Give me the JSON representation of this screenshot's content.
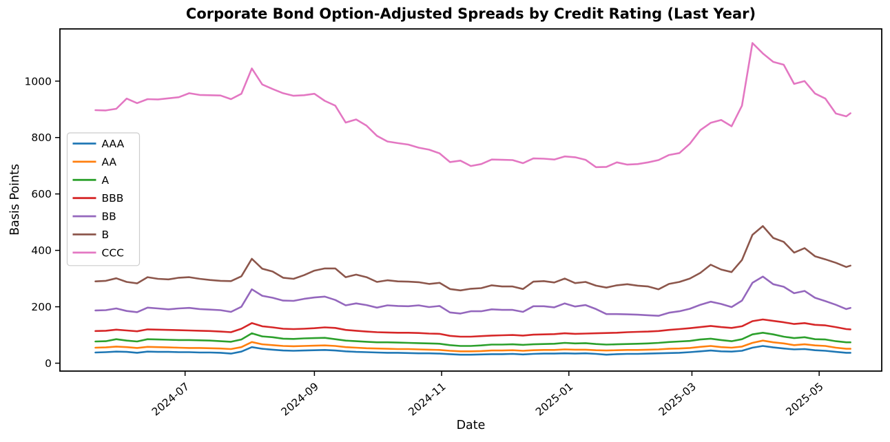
{
  "figure": {
    "background": "#ffffff",
    "frame_color": "#000000"
  },
  "chart_data": {
    "type": "line",
    "title": "Corporate Bond Option-Adjusted Spreads by Credit Rating (Last Year)",
    "xlabel": "Date",
    "ylabel": "Basis Points",
    "grid": false,
    "legend_position": "upper-left",
    "xlim": [
      "2024-05-02",
      "2025-05-31"
    ],
    "ylim": [
      -28,
      1185
    ],
    "yticks": [
      0,
      200,
      400,
      600,
      800,
      1000
    ],
    "xticks": [
      {
        "label": "2024-07",
        "date": "2024-07-01"
      },
      {
        "label": "2024-09",
        "date": "2024-09-01"
      },
      {
        "label": "2024-11",
        "date": "2024-11-01"
      },
      {
        "label": "2025-01",
        "date": "2025-01-01"
      },
      {
        "label": "2025-03",
        "date": "2025-03-01"
      },
      {
        "label": "2025-05",
        "date": "2025-05-01"
      }
    ],
    "x": [
      "2024-05-19",
      "2024-05-24",
      "2024-05-29",
      "2024-06-03",
      "2024-06-08",
      "2024-06-13",
      "2024-06-18",
      "2024-06-23",
      "2024-06-28",
      "2024-07-03",
      "2024-07-08",
      "2024-07-13",
      "2024-07-18",
      "2024-07-23",
      "2024-07-28",
      "2024-08-02",
      "2024-08-07",
      "2024-08-12",
      "2024-08-17",
      "2024-08-22",
      "2024-08-27",
      "2024-09-01",
      "2024-09-06",
      "2024-09-11",
      "2024-09-16",
      "2024-09-21",
      "2024-09-26",
      "2024-10-01",
      "2024-10-06",
      "2024-10-11",
      "2024-10-16",
      "2024-10-21",
      "2024-10-26",
      "2024-10-31",
      "2024-11-05",
      "2024-11-10",
      "2024-11-15",
      "2024-11-20",
      "2024-11-25",
      "2024-11-30",
      "2024-12-05",
      "2024-12-10",
      "2024-12-15",
      "2024-12-20",
      "2024-12-25",
      "2024-12-30",
      "2025-01-04",
      "2025-01-09",
      "2025-01-14",
      "2025-01-19",
      "2025-01-24",
      "2025-01-29",
      "2025-02-03",
      "2025-02-08",
      "2025-02-13",
      "2025-02-18",
      "2025-02-23",
      "2025-02-28",
      "2025-03-05",
      "2025-03-10",
      "2025-03-15",
      "2025-03-20",
      "2025-03-25",
      "2025-03-30",
      "2025-04-04",
      "2025-04-09",
      "2025-04-14",
      "2025-04-19",
      "2025-04-24",
      "2025-04-29",
      "2025-05-04",
      "2025-05-09",
      "2025-05-14",
      "2025-05-16"
    ],
    "series": [
      {
        "name": "AAA",
        "color": "#1f77b4",
        "values": [
          38,
          39,
          41,
          40,
          37,
          41,
          40,
          40,
          39,
          39,
          38,
          38,
          37,
          34,
          41,
          57,
          51,
          48,
          45,
          44,
          45,
          46,
          47,
          45,
          42,
          40,
          39,
          38,
          37,
          37,
          36,
          35,
          35,
          34,
          32,
          30,
          30,
          31,
          32,
          32,
          33,
          31,
          33,
          34,
          34,
          35,
          34,
          35,
          33,
          30,
          32,
          33,
          33,
          34,
          35,
          36,
          37,
          39,
          42,
          45,
          42,
          41,
          44,
          55,
          61,
          56,
          52,
          49,
          50,
          46,
          44,
          40,
          37,
          37
        ]
      },
      {
        "name": "AA",
        "color": "#ff7f0e",
        "values": [
          55,
          56,
          59,
          57,
          54,
          58,
          57,
          56,
          55,
          54,
          54,
          53,
          52,
          50,
          57,
          75,
          67,
          64,
          61,
          60,
          61,
          62,
          63,
          61,
          57,
          55,
          53,
          52,
          51,
          50,
          50,
          49,
          48,
          47,
          44,
          42,
          42,
          43,
          45,
          45,
          46,
          44,
          46,
          47,
          47,
          49,
          48,
          48,
          46,
          45,
          46,
          47,
          47,
          48,
          49,
          51,
          52,
          54,
          58,
          61,
          57,
          55,
          59,
          72,
          80,
          74,
          70,
          64,
          67,
          63,
          61,
          55,
          51,
          51
        ]
      },
      {
        "name": "A",
        "color": "#2ca02c",
        "values": [
          77,
          78,
          85,
          80,
          77,
          85,
          84,
          83,
          82,
          82,
          81,
          80,
          78,
          76,
          84,
          106,
          95,
          92,
          87,
          86,
          88,
          89,
          90,
          85,
          80,
          78,
          76,
          74,
          74,
          73,
          72,
          71,
          70,
          69,
          64,
          61,
          61,
          63,
          66,
          66,
          67,
          65,
          67,
          68,
          69,
          72,
          70,
          71,
          68,
          66,
          67,
          68,
          69,
          70,
          72,
          75,
          77,
          79,
          84,
          87,
          82,
          78,
          85,
          102,
          108,
          102,
          94,
          89,
          92,
          85,
          84,
          78,
          74,
          74
        ]
      },
      {
        "name": "BBB",
        "color": "#d62728",
        "values": [
          114,
          115,
          119,
          116,
          113,
          120,
          119,
          118,
          117,
          116,
          115,
          114,
          112,
          110,
          122,
          142,
          131,
          127,
          122,
          121,
          122,
          124,
          127,
          125,
          118,
          115,
          112,
          110,
          109,
          108,
          108,
          107,
          105,
          104,
          97,
          94,
          94,
          96,
          98,
          99,
          100,
          98,
          101,
          102,
          103,
          106,
          104,
          105,
          106,
          107,
          108,
          110,
          111,
          112,
          114,
          118,
          121,
          124,
          128,
          132,
          128,
          125,
          131,
          149,
          155,
          150,
          145,
          139,
          142,
          136,
          134,
          128,
          121,
          120
        ]
      },
      {
        "name": "BB",
        "color": "#9467bd",
        "values": [
          187,
          188,
          194,
          185,
          181,
          197,
          194,
          191,
          194,
          196,
          192,
          190,
          188,
          182,
          200,
          262,
          239,
          232,
          222,
          221,
          228,
          233,
          236,
          224,
          205,
          212,
          206,
          197,
          205,
          203,
          202,
          205,
          199,
          203,
          180,
          176,
          184,
          184,
          191,
          189,
          189,
          182,
          202,
          202,
          198,
          212,
          201,
          206,
          192,
          174,
          174,
          173,
          172,
          170,
          168,
          179,
          184,
          193,
          207,
          218,
          210,
          199,
          222,
          285,
          307,
          280,
          271,
          248,
          256,
          232,
          220,
          207,
          192,
          196
        ]
      },
      {
        "name": "B",
        "color": "#8c564b",
        "values": [
          290,
          292,
          301,
          288,
          283,
          305,
          299,
          297,
          303,
          305,
          299,
          295,
          292,
          291,
          308,
          370,
          335,
          325,
          303,
          299,
          312,
          328,
          336,
          336,
          305,
          314,
          305,
          288,
          294,
          290,
          289,
          287,
          281,
          285,
          263,
          258,
          264,
          266,
          276,
          272,
          272,
          263,
          289,
          291,
          286,
          300,
          284,
          288,
          275,
          268,
          276,
          280,
          275,
          272,
          262,
          281,
          288,
          300,
          320,
          349,
          332,
          323,
          366,
          455,
          486,
          444,
          430,
          392,
          408,
          379,
          368,
          356,
          341,
          346
        ]
      },
      {
        "name": "CCC",
        "color": "#e377c2",
        "values": [
          897,
          896,
          902,
          938,
          922,
          936,
          935,
          939,
          943,
          957,
          951,
          950,
          949,
          936,
          955,
          1045,
          988,
          972,
          957,
          948,
          950,
          955,
          930,
          913,
          853,
          864,
          842,
          806,
          786,
          780,
          775,
          764,
          757,
          744,
          713,
          718,
          699,
          706,
          722,
          721,
          720,
          709,
          726,
          725,
          722,
          733,
          730,
          721,
          695,
          696,
          712,
          704,
          706,
          712,
          720,
          738,
          745,
          778,
          826,
          852,
          862,
          840,
          913,
          1135,
          1098,
          1068,
          1058,
          990,
          1000,
          956,
          938,
          885,
          875,
          886
        ]
      }
    ]
  }
}
